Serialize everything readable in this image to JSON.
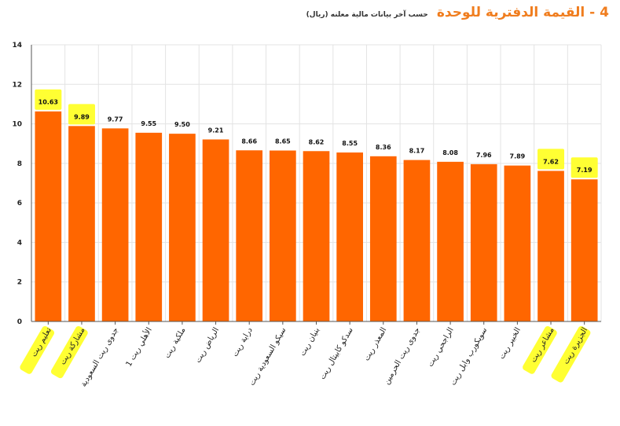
{
  "header": {
    "title": "4 - القيمة الدفترية للوحدة",
    "subtitle": "حسب آخر بيانات مالية معلنه (ريال)"
  },
  "colors": {
    "bar": "#ff6600",
    "highlight": "#ffff33",
    "title": "#f07d1e"
  },
  "chart_data": {
    "type": "bar",
    "title": "4 - القيمة الدفترية للوحدة",
    "subtitle": "حسب آخر بيانات مالية معلنه (ريال)",
    "ylim": [
      0,
      14
    ],
    "yticks": [
      0,
      2,
      4,
      6,
      8,
      10,
      12,
      14
    ],
    "grid": true,
    "categories": [
      "تعليم ريت",
      "مشاركة ريت",
      "جدوى ريت السعودية",
      "الأهلي ريت 1",
      "ملكية ريت",
      "الرياض ريت",
      "دراية ريت",
      "سيكو السعودية ريت",
      "بنيان ريت",
      "سدكو كابيتال ريت",
      "المعذر ريت",
      "جدوى ريت الحرمين",
      "الراجحي ريت",
      "سويكورب وابل ريت",
      "الخبير ريت",
      "مشاعر ريت",
      "الجزيرة ريت"
    ],
    "values": [
      10.63,
      9.89,
      9.77,
      9.55,
      9.5,
      9.21,
      8.66,
      8.65,
      8.62,
      8.55,
      8.36,
      8.17,
      8.08,
      7.96,
      7.89,
      7.62,
      7.19
    ],
    "labels": [
      "10.63",
      "9.89",
      "9.77",
      "9.55",
      "9.50",
      "9.21",
      "8.66",
      "8.65",
      "8.62",
      "8.55",
      "8.36",
      "8.17",
      "8.08",
      "7.96",
      "7.89",
      "7.62",
      "7.19"
    ],
    "highlighted": [
      0,
      1,
      15,
      16
    ]
  }
}
